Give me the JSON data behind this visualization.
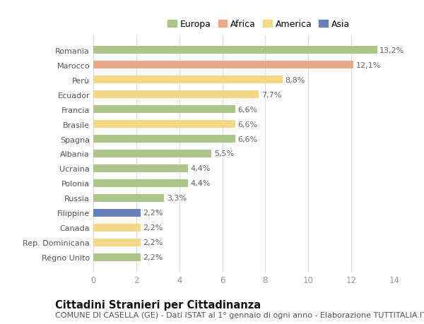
{
  "categories": [
    "Romania",
    "Marocco",
    "Perù",
    "Ecuador",
    "Francia",
    "Brasile",
    "Spagna",
    "Albania",
    "Ucraina",
    "Polonia",
    "Russia",
    "Filippine",
    "Canada",
    "Rep. Dominicana",
    "Regno Unito"
  ],
  "values": [
    13.2,
    12.1,
    8.8,
    7.7,
    6.6,
    6.6,
    6.6,
    5.5,
    4.4,
    4.4,
    3.3,
    2.2,
    2.2,
    2.2,
    2.2
  ],
  "continents": [
    "Europa",
    "Africa",
    "America",
    "America",
    "Europa",
    "America",
    "Europa",
    "Europa",
    "Europa",
    "Europa",
    "Europa",
    "Asia",
    "America",
    "America",
    "Europa"
  ],
  "colors": {
    "Europa": "#adc48a",
    "Africa": "#e8aa88",
    "America": "#f2d888",
    "Asia": "#6680bb"
  },
  "legend_items": [
    "Europa",
    "Africa",
    "America",
    "Asia"
  ],
  "legend_colors": [
    "#adc48a",
    "#e8aa88",
    "#f2d888",
    "#6680bb"
  ],
  "title": "Cittadini Stranieri per Cittadinanza",
  "subtitle": "COMUNE DI CASELLA (GE) - Dati ISTAT al 1° gennaio di ogni anno - Elaborazione TUTTITALIA.IT",
  "xlim": [
    0,
    14
  ],
  "xticks": [
    0,
    2,
    4,
    6,
    8,
    10,
    12,
    14
  ],
  "background_color": "#ffffff",
  "grid_color": "#dddddd",
  "bar_label_color": "#666666",
  "yticklabel_color": "#555555",
  "xticklabel_color": "#999999",
  "title_fontsize": 10.5,
  "subtitle_fontsize": 8,
  "bar_label_fontsize": 8,
  "ytick_fontsize": 8,
  "xtick_fontsize": 8.5,
  "bar_height": 0.55
}
